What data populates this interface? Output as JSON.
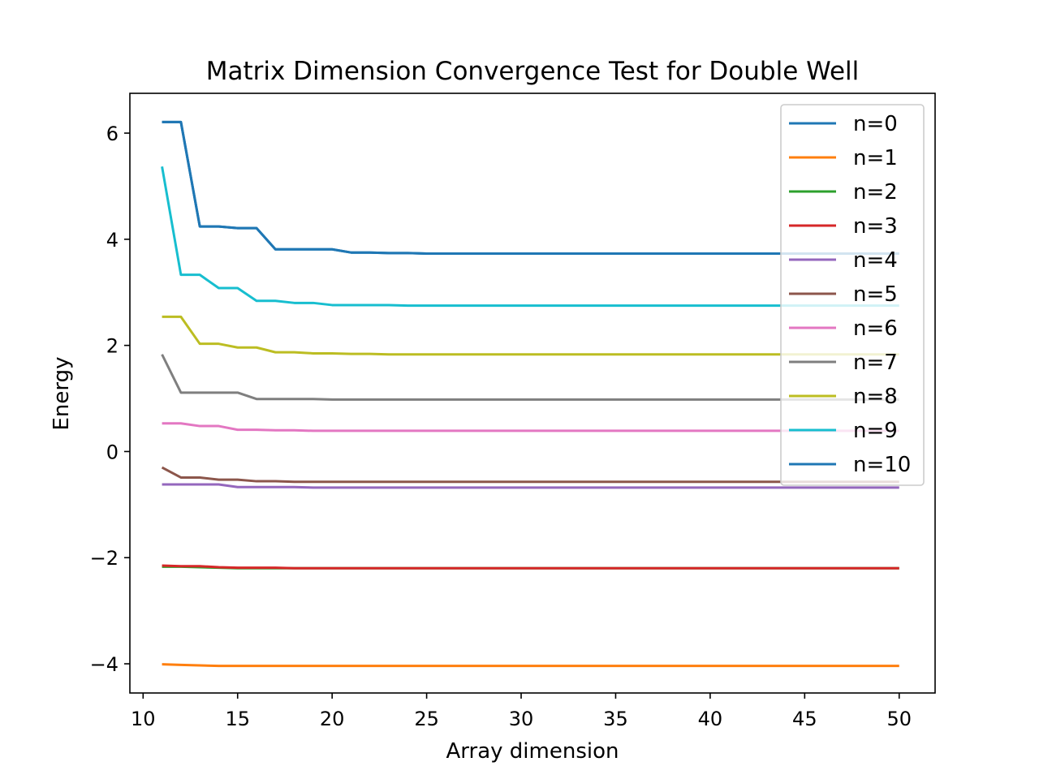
{
  "chart_data": {
    "type": "line",
    "title": "Matrix Dimension Convergence Test for Double Well",
    "xlabel": "Array dimension",
    "ylabel": "Energy",
    "xlim": [
      9.3,
      51.9
    ],
    "ylim": [
      -4.55,
      6.75
    ],
    "xticks": [
      10,
      15,
      20,
      25,
      30,
      35,
      40,
      45,
      50
    ],
    "yticks": [
      -4,
      -2,
      0,
      2,
      4,
      6
    ],
    "ytick_labels": [
      "−4",
      "−2",
      "0",
      "2",
      "4",
      "6"
    ],
    "grid": false,
    "legend": "top-right",
    "x": [
      11,
      12,
      13,
      14,
      15,
      16,
      17,
      18,
      19,
      20,
      21,
      22,
      23,
      24,
      25,
      26,
      27,
      28,
      29,
      30,
      31,
      32,
      33,
      34,
      35,
      36,
      37,
      38,
      39,
      40,
      41,
      42,
      43,
      44,
      45,
      46,
      47,
      48,
      49,
      50
    ],
    "series": [
      {
        "name": "n=0",
        "color": "#1f77b4",
        "values": [
          6.21,
          6.21,
          4.24,
          4.24,
          4.21,
          4.21,
          3.81,
          3.81,
          3.81,
          3.81,
          3.75,
          3.75,
          3.74,
          3.74,
          3.73,
          3.73,
          3.73,
          3.73,
          3.73,
          3.73,
          3.73,
          3.73,
          3.73,
          3.73,
          3.73,
          3.73,
          3.73,
          3.73,
          3.73,
          3.73,
          3.73,
          3.73,
          3.73,
          3.73,
          3.73,
          3.73,
          3.73,
          3.73,
          3.73,
          3.73
        ]
      },
      {
        "name": "n=1",
        "color": "#ff7f0e",
        "values": [
          -4.01,
          -4.02,
          -4.03,
          -4.04,
          -4.04,
          -4.04,
          -4.04,
          -4.04,
          -4.04,
          -4.04,
          -4.04,
          -4.04,
          -4.04,
          -4.04,
          -4.04,
          -4.04,
          -4.04,
          -4.04,
          -4.04,
          -4.04,
          -4.04,
          -4.04,
          -4.04,
          -4.04,
          -4.04,
          -4.04,
          -4.04,
          -4.04,
          -4.04,
          -4.04,
          -4.04,
          -4.04,
          -4.04,
          -4.04,
          -4.04,
          -4.04,
          -4.04,
          -4.04,
          -4.04,
          -4.04
        ]
      },
      {
        "name": "n=2",
        "color": "#2ca02c",
        "values": [
          -2.17,
          -2.17,
          -2.18,
          -2.19,
          -2.2,
          -2.2,
          -2.2,
          -2.2,
          -2.2,
          -2.2,
          -2.2,
          -2.2,
          -2.2,
          -2.2,
          -2.2,
          -2.2,
          -2.2,
          -2.2,
          -2.2,
          -2.2,
          -2.2,
          -2.2,
          -2.2,
          -2.2,
          -2.2,
          -2.2,
          -2.2,
          -2.2,
          -2.2,
          -2.2,
          -2.2,
          -2.2,
          -2.2,
          -2.2,
          -2.2,
          -2.2,
          -2.2,
          -2.2,
          -2.2,
          -2.2
        ]
      },
      {
        "name": "n=3",
        "color": "#d62728",
        "values": [
          -2.15,
          -2.16,
          -2.16,
          -2.18,
          -2.19,
          -2.19,
          -2.19,
          -2.2,
          -2.2,
          -2.2,
          -2.2,
          -2.2,
          -2.2,
          -2.2,
          -2.2,
          -2.2,
          -2.2,
          -2.2,
          -2.2,
          -2.2,
          -2.2,
          -2.2,
          -2.2,
          -2.2,
          -2.2,
          -2.2,
          -2.2,
          -2.2,
          -2.2,
          -2.2,
          -2.2,
          -2.2,
          -2.2,
          -2.2,
          -2.2,
          -2.2,
          -2.2,
          -2.2,
          -2.2,
          -2.2
        ]
      },
      {
        "name": "n=4",
        "color": "#9467bd",
        "values": [
          -0.62,
          -0.62,
          -0.62,
          -0.62,
          -0.67,
          -0.67,
          -0.67,
          -0.67,
          -0.68,
          -0.68,
          -0.68,
          -0.68,
          -0.68,
          -0.68,
          -0.68,
          -0.68,
          -0.68,
          -0.68,
          -0.68,
          -0.68,
          -0.68,
          -0.68,
          -0.68,
          -0.68,
          -0.68,
          -0.68,
          -0.68,
          -0.68,
          -0.68,
          -0.68,
          -0.68,
          -0.68,
          -0.68,
          -0.68,
          -0.68,
          -0.68,
          -0.68,
          -0.68,
          -0.68,
          -0.68
        ]
      },
      {
        "name": "n=5",
        "color": "#8c564b",
        "values": [
          -0.3,
          -0.49,
          -0.49,
          -0.53,
          -0.53,
          -0.56,
          -0.56,
          -0.57,
          -0.57,
          -0.57,
          -0.57,
          -0.57,
          -0.57,
          -0.57,
          -0.57,
          -0.57,
          -0.57,
          -0.57,
          -0.57,
          -0.57,
          -0.57,
          -0.57,
          -0.57,
          -0.57,
          -0.57,
          -0.57,
          -0.57,
          -0.57,
          -0.57,
          -0.57,
          -0.57,
          -0.57,
          -0.57,
          -0.57,
          -0.57,
          -0.57,
          -0.57,
          -0.57,
          -0.57,
          -0.57
        ]
      },
      {
        "name": "n=6",
        "color": "#e377c2",
        "values": [
          0.53,
          0.53,
          0.48,
          0.48,
          0.41,
          0.41,
          0.4,
          0.4,
          0.39,
          0.39,
          0.39,
          0.39,
          0.39,
          0.39,
          0.39,
          0.39,
          0.39,
          0.39,
          0.39,
          0.39,
          0.39,
          0.39,
          0.39,
          0.39,
          0.39,
          0.39,
          0.39,
          0.39,
          0.39,
          0.39,
          0.39,
          0.39,
          0.39,
          0.39,
          0.39,
          0.39,
          0.39,
          0.39,
          0.39,
          0.39
        ]
      },
      {
        "name": "n=7",
        "color": "#7f7f7f",
        "values": [
          1.83,
          1.11,
          1.11,
          1.11,
          1.11,
          0.99,
          0.99,
          0.99,
          0.99,
          0.98,
          0.98,
          0.98,
          0.98,
          0.98,
          0.98,
          0.98,
          0.98,
          0.98,
          0.98,
          0.98,
          0.98,
          0.98,
          0.98,
          0.98,
          0.98,
          0.98,
          0.98,
          0.98,
          0.98,
          0.98,
          0.98,
          0.98,
          0.98,
          0.98,
          0.98,
          0.98,
          0.98,
          0.98,
          0.98,
          0.98
        ]
      },
      {
        "name": "n=8",
        "color": "#bcbd22",
        "values": [
          2.54,
          2.54,
          2.03,
          2.03,
          1.96,
          1.96,
          1.87,
          1.87,
          1.85,
          1.85,
          1.84,
          1.84,
          1.83,
          1.83,
          1.83,
          1.83,
          1.83,
          1.83,
          1.83,
          1.83,
          1.83,
          1.83,
          1.83,
          1.83,
          1.83,
          1.83,
          1.83,
          1.83,
          1.83,
          1.83,
          1.83,
          1.83,
          1.83,
          1.83,
          1.83,
          1.83,
          1.83,
          1.83,
          1.83,
          1.83
        ]
      },
      {
        "name": "n=9",
        "color": "#17becf",
        "values": [
          5.37,
          3.33,
          3.33,
          3.08,
          3.08,
          2.84,
          2.84,
          2.8,
          2.8,
          2.76,
          2.76,
          2.76,
          2.76,
          2.75,
          2.75,
          2.75,
          2.75,
          2.75,
          2.75,
          2.75,
          2.75,
          2.75,
          2.75,
          2.75,
          2.75,
          2.75,
          2.75,
          2.75,
          2.75,
          2.75,
          2.75,
          2.75,
          2.75,
          2.75,
          2.75,
          2.75,
          2.75,
          2.75,
          2.75,
          2.75
        ]
      },
      {
        "name": "n=10",
        "color": "#1f77b4",
        "values": [
          6.21,
          6.21,
          4.24,
          4.24,
          4.21,
          4.21,
          3.81,
          3.81,
          3.81,
          3.81,
          3.75,
          3.75,
          3.74,
          3.74,
          3.73,
          3.73,
          3.73,
          3.73,
          3.73,
          3.73,
          3.73,
          3.73,
          3.73,
          3.73,
          3.73,
          3.73,
          3.73,
          3.73,
          3.73,
          3.73,
          3.73,
          3.73,
          3.73,
          3.73,
          3.73,
          3.73,
          3.73,
          3.73,
          3.73,
          3.73
        ]
      }
    ]
  }
}
